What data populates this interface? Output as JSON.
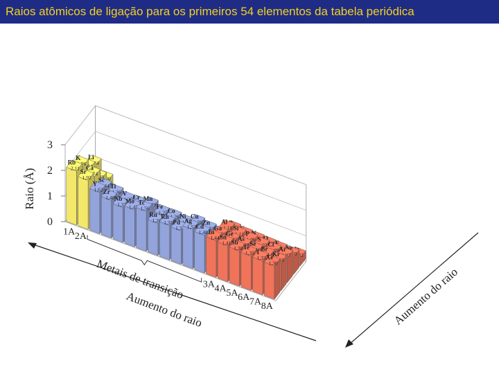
{
  "header": {
    "title": "Raios atômicos de ligação para os primeiros 54 elementos da tabela periódica"
  },
  "colors": {
    "titlebar_bg": "#1f2c86",
    "title_text": "#f3d21c",
    "groupA_left": "#f4e86a",
    "transition": "#93a3db",
    "groupA_right": "#f0735a",
    "hydrogen": "#f0735a"
  },
  "chart_data": {
    "type": "bar",
    "chart_style": "3d-block",
    "ylabel": "Raio (Å)",
    "yticks": [
      "0",
      "1",
      "2",
      "3"
    ],
    "ylim": [
      0,
      3
    ],
    "group_labels": [
      "1A",
      "2A",
      "3A",
      "4A",
      "5A",
      "6A",
      "7A",
      "8A"
    ],
    "bracket_label": "Metais de transição",
    "arrow_labels": {
      "front": "Aumento do raio",
      "right": "Aumento do raio"
    },
    "elements": [
      {
        "symbol": "H",
        "value": "0,37",
        "radius": 0.37,
        "period": 1,
        "column": 0,
        "category": "hydrogen"
      },
      {
        "symbol": "Li",
        "value": "1,34",
        "radius": 1.34,
        "period": 2,
        "column": 0,
        "category": "alkali"
      },
      {
        "symbol": "Be",
        "value": "0,90",
        "radius": 0.9,
        "period": 2,
        "column": 1,
        "category": "alkaline"
      },
      {
        "symbol": "Na",
        "value": "1,54",
        "radius": 1.54,
        "period": 3,
        "column": 0,
        "category": "alkali"
      },
      {
        "symbol": "Mg",
        "value": "1,30",
        "radius": 1.3,
        "period": 3,
        "column": 1,
        "category": "alkaline"
      },
      {
        "symbol": "K",
        "value": "1,96",
        "radius": 1.96,
        "period": 4,
        "column": 0,
        "category": "alkali"
      },
      {
        "symbol": "Ca",
        "value": "1,74",
        "radius": 1.74,
        "period": 4,
        "column": 1,
        "category": "alkaline"
      },
      {
        "symbol": "Rb",
        "value": "2,11",
        "radius": 2.11,
        "period": 5,
        "column": 0,
        "category": "alkali"
      },
      {
        "symbol": "Sr",
        "value": "1,92",
        "radius": 1.92,
        "period": 5,
        "column": 1,
        "category": "alkaline"
      },
      {
        "symbol": "Sc",
        "value": "1,44",
        "radius": 1.44,
        "period": 4,
        "column": 2,
        "category": "transition"
      },
      {
        "symbol": "Ti",
        "value": "1,36",
        "radius": 1.36,
        "period": 4,
        "column": 3,
        "category": "transition"
      },
      {
        "symbol": "V",
        "value": "1,25",
        "radius": 1.25,
        "period": 4,
        "column": 4,
        "category": "transition"
      },
      {
        "symbol": "Cr",
        "value": "1,27",
        "radius": 1.27,
        "period": 4,
        "column": 5,
        "category": "transition"
      },
      {
        "symbol": "Mn",
        "value": "1,39",
        "radius": 1.39,
        "period": 4,
        "column": 6,
        "category": "transition"
      },
      {
        "symbol": "Fe",
        "value": "1,25",
        "radius": 1.25,
        "period": 4,
        "column": 7,
        "category": "transition"
      },
      {
        "symbol": "Co",
        "value": "1,26",
        "radius": 1.26,
        "period": 4,
        "column": 8,
        "category": "transition"
      },
      {
        "symbol": "Ni",
        "value": "1,21",
        "radius": 1.21,
        "period": 4,
        "column": 9,
        "category": "transition"
      },
      {
        "symbol": "Cu",
        "value": "1,38",
        "radius": 1.38,
        "period": 4,
        "column": 10,
        "category": "transition"
      },
      {
        "symbol": "Zn",
        "value": "1,31",
        "radius": 1.31,
        "period": 4,
        "column": 11,
        "category": "transition"
      },
      {
        "symbol": "Y",
        "value": "1,62",
        "radius": 1.62,
        "period": 5,
        "column": 2,
        "category": "transition"
      },
      {
        "symbol": "Zr",
        "value": "1,48",
        "radius": 1.48,
        "period": 5,
        "column": 3,
        "category": "transition"
      },
      {
        "symbol": "Nb",
        "value": "1,37",
        "radius": 1.37,
        "period": 5,
        "column": 4,
        "category": "transition"
      },
      {
        "symbol": "Mo",
        "value": "1,45",
        "radius": 1.45,
        "period": 5,
        "column": 5,
        "category": "transition"
      },
      {
        "symbol": "Tc",
        "value": "1,56",
        "radius": 1.56,
        "period": 5,
        "column": 6,
        "category": "transition"
      },
      {
        "symbol": "Ru",
        "value": "1,26",
        "radius": 1.26,
        "period": 5,
        "column": 7,
        "category": "transition"
      },
      {
        "symbol": "Rh",
        "value": "1,35",
        "radius": 1.35,
        "period": 5,
        "column": 8,
        "category": "transition"
      },
      {
        "symbol": "Pd",
        "value": "1,31",
        "radius": 1.31,
        "period": 5,
        "column": 9,
        "category": "transition"
      },
      {
        "symbol": "Ag",
        "value": "1,53",
        "radius": 1.53,
        "period": 5,
        "column": 10,
        "category": "transition"
      },
      {
        "symbol": "Cd",
        "value": "1,48",
        "radius": 1.48,
        "period": 5,
        "column": 11,
        "category": "transition"
      },
      {
        "symbol": "B",
        "value": "0,82",
        "radius": 0.82,
        "period": 2,
        "column": 12,
        "category": "main"
      },
      {
        "symbol": "C",
        "value": "0,77",
        "radius": 0.77,
        "period": 2,
        "column": 13,
        "category": "main"
      },
      {
        "symbol": "N",
        "value": "0,75",
        "radius": 0.75,
        "period": 2,
        "column": 14,
        "category": "main"
      },
      {
        "symbol": "O",
        "value": "0,73",
        "radius": 0.73,
        "period": 2,
        "column": 15,
        "category": "main"
      },
      {
        "symbol": "F",
        "value": "0,71",
        "radius": 0.71,
        "period": 2,
        "column": 16,
        "category": "main"
      },
      {
        "symbol": "Ne",
        "value": "0,69",
        "radius": 0.69,
        "period": 2,
        "column": 17,
        "category": "main"
      },
      {
        "symbol": "He",
        "value": "0,32",
        "radius": 0.32,
        "period": 1,
        "column": 17,
        "category": "main"
      },
      {
        "symbol": "Al",
        "value": "1,18",
        "radius": 1.18,
        "period": 3,
        "column": 12,
        "category": "main"
      },
      {
        "symbol": "Si",
        "value": "1,11",
        "radius": 1.11,
        "period": 3,
        "column": 13,
        "category": "main"
      },
      {
        "symbol": "P",
        "value": "1,06",
        "radius": 1.06,
        "period": 3,
        "column": 14,
        "category": "main"
      },
      {
        "symbol": "S",
        "value": "1,02",
        "radius": 1.02,
        "period": 3,
        "column": 15,
        "category": "main"
      },
      {
        "symbol": "Cl",
        "value": "0,99",
        "radius": 0.99,
        "period": 3,
        "column": 16,
        "category": "main"
      },
      {
        "symbol": "Ar",
        "value": "0,97",
        "radius": 0.97,
        "period": 3,
        "column": 17,
        "category": "main"
      },
      {
        "symbol": "Ga",
        "value": "1,26",
        "radius": 1.26,
        "period": 4,
        "column": 12,
        "category": "main"
      },
      {
        "symbol": "Ge",
        "value": "1,22",
        "radius": 1.22,
        "period": 4,
        "column": 13,
        "category": "main"
      },
      {
        "symbol": "As",
        "value": "1,19",
        "radius": 1.19,
        "period": 4,
        "column": 14,
        "category": "main"
      },
      {
        "symbol": "Se",
        "value": "1,16",
        "radius": 1.16,
        "period": 4,
        "column": 15,
        "category": "main"
      },
      {
        "symbol": "Br",
        "value": "1,14",
        "radius": 1.14,
        "period": 4,
        "column": 16,
        "category": "main"
      },
      {
        "symbol": "Kr",
        "value": "1,10",
        "radius": 1.1,
        "period": 4,
        "column": 17,
        "category": "main"
      },
      {
        "symbol": "In",
        "value": "1,44",
        "radius": 1.44,
        "period": 5,
        "column": 12,
        "category": "main"
      },
      {
        "symbol": "Sn",
        "value": "1,41",
        "radius": 1.41,
        "period": 5,
        "column": 13,
        "category": "main"
      },
      {
        "symbol": "Sb",
        "value": "1,38",
        "radius": 1.38,
        "period": 5,
        "column": 14,
        "category": "main"
      },
      {
        "symbol": "Te",
        "value": "1,35",
        "radius": 1.35,
        "period": 5,
        "column": 15,
        "category": "main"
      },
      {
        "symbol": "I",
        "value": "1,33",
        "radius": 1.33,
        "period": 5,
        "column": 16,
        "category": "main"
      },
      {
        "symbol": "Xe",
        "value": "1,30",
        "radius": 1.3,
        "period": 5,
        "column": 17,
        "category": "main"
      }
    ]
  }
}
